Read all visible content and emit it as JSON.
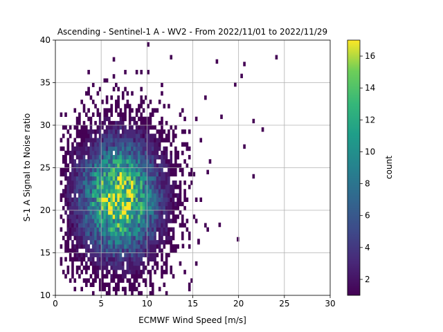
{
  "chart_data": {
    "type": "heatmap",
    "title": "Ascending - Sentinel-1 A - WV2 - From 2022/11/01 to 2022/11/29",
    "xlabel": "ECMWF Wind Speed [m/s]",
    "ylabel": "S-1 A Signal to Noise ratio",
    "xlim": [
      0,
      30
    ],
    "ylim": [
      10,
      40
    ],
    "xticks": [
      0,
      5,
      10,
      15,
      20,
      25,
      30
    ],
    "yticks": [
      10,
      15,
      20,
      25,
      30,
      35,
      40
    ],
    "grid": true,
    "bin_size": {
      "x": 0.25,
      "y": 0.5
    },
    "colorbar": {
      "label": "count",
      "colormap": "viridis",
      "range": [
        1,
        17
      ],
      "ticks": [
        2,
        4,
        6,
        8,
        10,
        12,
        14,
        16
      ]
    },
    "density_model": {
      "peak_count": 16.5,
      "center": {
        "x": 7.0,
        "y": 21.5
      },
      "spread": {
        "x": 2.8,
        "y": 4.3
      },
      "outliers": [
        [
          10,
          39.5
        ],
        [
          12.5,
          38
        ],
        [
          17.5,
          37.5
        ],
        [
          20.5,
          37.2
        ],
        [
          20.2,
          35.8
        ],
        [
          24,
          38
        ],
        [
          21.5,
          30.5
        ],
        [
          20.5,
          27.5
        ],
        [
          22.5,
          29.5
        ],
        [
          19.5,
          34.8
        ],
        [
          18,
          31
        ],
        [
          21.5,
          24
        ],
        [
          16.5,
          24.5
        ],
        [
          19.8,
          16.6
        ],
        [
          15.5,
          16.4
        ],
        [
          17.8,
          18.3
        ],
        [
          13.8,
          15.8
        ]
      ]
    }
  }
}
